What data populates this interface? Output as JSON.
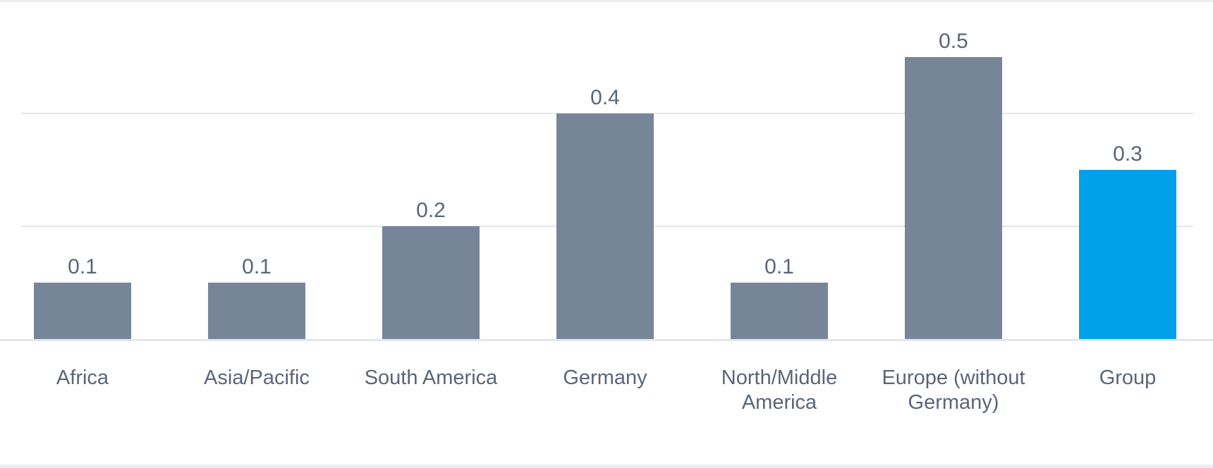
{
  "colors": {
    "bar_default": "#778599",
    "bar_highlight": "#00a0eb",
    "gridline": "#e3e6ea",
    "baseline": "#e3e6ea",
    "frame": "#eceef1",
    "text": "#5a6579"
  },
  "chart_data": {
    "type": "bar",
    "categories": [
      [
        "Africa"
      ],
      [
        "Asia/Pacific"
      ],
      [
        "South America"
      ],
      [
        "Germany"
      ],
      [
        "North/Middle",
        "America"
      ],
      [
        "Europe (without",
        "Germany)"
      ],
      [
        "Group"
      ]
    ],
    "values": [
      0.1,
      0.1,
      0.2,
      0.4,
      0.1,
      0.5,
      0.3
    ],
    "value_labels": [
      "0.1",
      "0.1",
      "0.2",
      "0.4",
      "0.1",
      "0.5",
      "0.3"
    ],
    "highlighted_category": "Group",
    "ylim": [
      0,
      0.6
    ],
    "gridlines_at": [
      0.2,
      0.4
    ],
    "grid": true,
    "legend": "none",
    "title": "",
    "xlabel": "",
    "ylabel": ""
  }
}
